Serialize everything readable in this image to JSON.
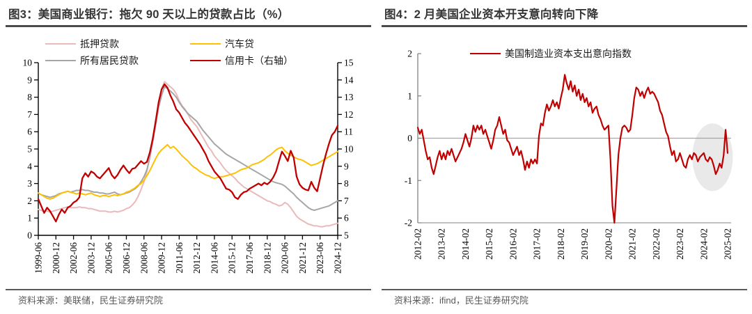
{
  "figures": [
    {
      "title": "图3：美国商业银行：拖欠 90 天以上的贷款占比（%）",
      "source": "资料来源：美联储，民生证券研究院",
      "legend": [
        {
          "label": "抵押贷款",
          "color": "#E9B9BC"
        },
        {
          "label": "汽车贷",
          "color": "#FFC000"
        },
        {
          "label": "所有居民贷款",
          "color": "#A6A6A6"
        },
        {
          "label": "信用卡（右轴）",
          "color": "#C00000"
        }
      ]
    },
    {
      "title": "图4：2 月美国企业资本开支意向转向下降",
      "source": "资料来源：ifind，民生证券研究院",
      "legend": [
        {
          "label": "美国制造业资本支出意向指数",
          "color": "#C00000"
        }
      ]
    }
  ],
  "chart_data": [
    {
      "type": "line",
      "title": "美国商业银行：拖欠90天以上的贷款占比（%）",
      "x_start": 1999.417,
      "x_step": 0.25,
      "x_tick_every": 6,
      "x_tick_labels": [
        "1999-06",
        "2000-12",
        "2002-06",
        "2003-12",
        "2005-06",
        "2006-12",
        "2008-06",
        "2009-12",
        "2011-06",
        "2012-12",
        "2014-06",
        "2015-12",
        "2017-06",
        "2018-12",
        "2020-06",
        "2021-12",
        "2023-06",
        "2024-12"
      ],
      "left_axis": {
        "min": 0,
        "max": 10,
        "ticks": [
          0,
          1,
          2,
          3,
          4,
          5,
          6,
          7,
          8,
          9,
          10
        ]
      },
      "right_axis": {
        "min": 5,
        "max": 15,
        "ticks": [
          5,
          6,
          7,
          8,
          9,
          10,
          11,
          12,
          13,
          14,
          15
        ]
      },
      "axis_color": "#000000",
      "series": [
        {
          "key": "mortgage",
          "name": "抵押贷款",
          "axis": "left",
          "color": "#E9B9BC",
          "values": [
            1.5,
            1.45,
            1.4,
            1.4,
            1.35,
            1.4,
            1.45,
            1.5,
            1.55,
            1.6,
            1.65,
            1.6,
            1.6,
            1.6,
            1.65,
            1.6,
            1.6,
            1.55,
            1.55,
            1.5,
            1.45,
            1.4,
            1.4,
            1.4,
            1.35,
            1.35,
            1.4,
            1.35,
            1.4,
            1.45,
            1.55,
            1.6,
            1.75,
            1.95,
            2.25,
            2.65,
            3.1,
            3.7,
            4.6,
            5.6,
            6.7,
            7.7,
            8.5,
            8.9,
            8.75,
            8.6,
            8.45,
            8.2,
            7.8,
            7.5,
            7.3,
            7.0,
            6.7,
            6.5,
            6.3,
            6.0,
            5.7,
            5.4,
            5.1,
            4.9,
            4.6,
            4.4,
            4.2,
            3.95,
            3.75,
            3.6,
            3.45,
            3.3,
            3.1,
            2.95,
            2.8,
            2.7,
            2.6,
            2.5,
            2.4,
            2.3,
            2.2,
            2.1,
            2.0,
            1.95,
            1.85,
            1.8,
            1.7,
            1.75,
            1.9,
            1.8,
            1.6,
            1.35,
            1.1,
            0.95,
            0.85,
            0.75,
            0.65,
            0.6,
            0.55,
            0.55,
            0.5,
            0.5,
            0.55,
            0.55,
            0.6,
            0.65,
            0.7
          ]
        },
        {
          "key": "all-consumer-loans",
          "name": "所有居民贷款",
          "axis": "left",
          "color": "#A6A6A6",
          "values": [
            2.45,
            2.35,
            2.3,
            2.25,
            2.2,
            2.25,
            2.3,
            2.4,
            2.45,
            2.5,
            2.55,
            2.5,
            2.55,
            2.6,
            2.6,
            2.65,
            2.6,
            2.6,
            2.55,
            2.5,
            2.5,
            2.45,
            2.45,
            2.4,
            2.4,
            2.45,
            2.5,
            2.4,
            2.35,
            2.4,
            2.45,
            2.5,
            2.6,
            2.7,
            2.85,
            3.1,
            3.4,
            3.8,
            4.5,
            5.4,
            6.4,
            7.4,
            8.1,
            8.6,
            8.5,
            8.35,
            8.2,
            8.0,
            7.7,
            7.45,
            7.25,
            7.05,
            6.9,
            6.75,
            6.6,
            6.35,
            6.1,
            5.9,
            5.7,
            5.5,
            5.3,
            5.15,
            5.0,
            4.85,
            4.7,
            4.6,
            4.5,
            4.4,
            4.3,
            4.2,
            4.1,
            4.0,
            3.9,
            3.8,
            3.7,
            3.6,
            3.5,
            3.4,
            3.3,
            3.2,
            3.1,
            3.05,
            3.0,
            2.95,
            2.85,
            2.7,
            2.55,
            2.4,
            2.2,
            2.05,
            1.9,
            1.75,
            1.6,
            1.5,
            1.45,
            1.5,
            1.55,
            1.6,
            1.65,
            1.7,
            1.8,
            1.9,
            2.0
          ]
        },
        {
          "key": "auto-loan",
          "name": "汽车贷",
          "axis": "left",
          "color": "#FFC000",
          "values": [
            2.45,
            2.35,
            2.25,
            2.15,
            2.1,
            2.15,
            2.25,
            2.35,
            2.45,
            2.5,
            2.55,
            2.5,
            2.45,
            2.4,
            2.45,
            2.4,
            2.35,
            2.4,
            2.45,
            2.35,
            2.3,
            2.25,
            2.3,
            2.3,
            2.25,
            2.3,
            2.35,
            2.3,
            2.35,
            2.4,
            2.5,
            2.55,
            2.65,
            2.75,
            2.9,
            3.0,
            3.2,
            3.45,
            3.75,
            4.1,
            4.45,
            4.75,
            4.95,
            5.1,
            5.25,
            5.05,
            5.15,
            5.0,
            4.8,
            4.6,
            4.45,
            4.3,
            4.1,
            3.95,
            3.85,
            3.7,
            3.6,
            3.5,
            3.45,
            3.35,
            3.3,
            3.35,
            3.4,
            3.4,
            3.45,
            3.5,
            3.55,
            3.6,
            3.7,
            3.8,
            3.85,
            3.9,
            4.0,
            4.1,
            4.15,
            4.2,
            4.3,
            4.4,
            4.55,
            4.65,
            4.8,
            4.95,
            5.05,
            5.1,
            4.9,
            4.75,
            4.65,
            4.55,
            4.45,
            4.4,
            4.35,
            4.25,
            4.15,
            4.05,
            4.1,
            4.15,
            4.25,
            4.35,
            4.45,
            4.55,
            4.65,
            4.75,
            4.85
          ]
        },
        {
          "key": "credit-card",
          "name": "信用卡（右轴）",
          "axis": "right",
          "color": "#C00000",
          "values": [
            7.1,
            6.7,
            6.3,
            6.6,
            6.4,
            6.1,
            5.8,
            6.2,
            6.5,
            6.3,
            6.6,
            6.7,
            6.9,
            7.0,
            7.2,
            8.3,
            8.6,
            8.4,
            8.7,
            8.6,
            8.4,
            8.3,
            8.5,
            8.7,
            8.9,
            8.5,
            8.3,
            8.5,
            8.8,
            9.05,
            8.8,
            8.6,
            8.85,
            8.9,
            9.1,
            9.3,
            9.15,
            9.25,
            9.8,
            10.6,
            11.6,
            12.7,
            13.45,
            13.75,
            13.55,
            13.1,
            12.75,
            12.3,
            12.1,
            11.8,
            11.5,
            11.3,
            11.05,
            10.8,
            10.55,
            10.3,
            10.0,
            9.7,
            9.3,
            9.0,
            8.7,
            8.5,
            8.3,
            8.0,
            7.7,
            7.65,
            7.5,
            7.2,
            7.1,
            7.35,
            7.5,
            7.55,
            7.7,
            7.8,
            7.9,
            8.0,
            7.9,
            8.05,
            7.95,
            8.1,
            8.35,
            8.7,
            9.3,
            9.85,
            9.6,
            9.3,
            9.9,
            9.5,
            8.4,
            7.95,
            7.75,
            7.65,
            7.6,
            8.1,
            7.75,
            7.55,
            8.3,
            9.05,
            9.7,
            10.3,
            10.8,
            11.0,
            11.35
          ]
        }
      ]
    },
    {
      "type": "line",
      "title": "2月美国企业资本开支意向转向下降",
      "x_start": 2012.083,
      "x_step": 0.083333,
      "x_tick_every": 12,
      "x_tick_labels": [
        "2012-02",
        "2013-02",
        "2014-02",
        "2015-02",
        "2016-02",
        "2017-02",
        "2018-02",
        "2019-02",
        "2020-02",
        "2021-02",
        "2022-02",
        "2023-02",
        "2024-02",
        "2025-02"
      ],
      "y_axis": {
        "min": -2,
        "max": 2,
        "ticks": [
          2,
          1,
          0,
          -1,
          -2
        ]
      },
      "axis_color": "#808080",
      "zero_line_color": "#A6A6A6",
      "highlight_ellipse": {
        "cx_x": 2024.45,
        "cy_y": -0.45,
        "rx_x": 0.85,
        "ry_y": 0.8,
        "color": "#E9E9E9"
      },
      "series": [
        {
          "key": "capex-index",
          "name": "美国制造业资本支出意向指数",
          "color": "#C00000",
          "values": [
            0.25,
            0.1,
            0.2,
            -0.05,
            -0.3,
            -0.5,
            -0.45,
            -0.7,
            -0.85,
            -0.65,
            -0.45,
            -0.3,
            -0.5,
            -0.35,
            -0.5,
            -0.3,
            -0.4,
            -0.25,
            -0.4,
            -0.55,
            -0.45,
            -0.35,
            -0.25,
            -0.1,
            0.1,
            -0.05,
            -0.2,
            0.0,
            0.3,
            0.15,
            0.3,
            0.2,
            0.3,
            0.1,
            0.2,
            0.05,
            -0.1,
            -0.25,
            -0.05,
            0.2,
            0.3,
            0.5,
            0.3,
            0.1,
            0.2,
            -0.05,
            -0.1,
            -0.25,
            -0.4,
            -0.3,
            -0.2,
            -0.4,
            -0.3,
            -0.5,
            -0.75,
            -0.55,
            -0.7,
            -0.5,
            -0.6,
            -0.5,
            -0.6,
            0.05,
            0.35,
            0.3,
            0.6,
            0.8,
            0.65,
            0.75,
            0.9,
            0.75,
            0.85,
            0.7,
            0.95,
            1.15,
            1.5,
            1.3,
            1.15,
            1.35,
            1.1,
            1.25,
            1.0,
            1.15,
            0.9,
            1.05,
            0.85,
            0.95,
            0.75,
            0.85,
            0.6,
            0.7,
            0.75,
            0.55,
            0.45,
            0.3,
            0.2,
            0.25,
            0.3,
            -0.5,
            -1.6,
            -2.0,
            -1.2,
            -0.4,
            0.0,
            0.25,
            0.3,
            0.25,
            0.15,
            0.2,
            0.55,
            0.95,
            1.2,
            1.15,
            1.0,
            1.1,
            0.95,
            1.1,
            1.2,
            1.05,
            1.1,
            1.05,
            0.95,
            0.85,
            0.65,
            0.55,
            0.35,
            0.15,
            0.05,
            -0.2,
            -0.4,
            -0.3,
            -0.55,
            -0.5,
            -0.35,
            -0.5,
            -0.65,
            -0.7,
            -0.5,
            -0.4,
            -0.5,
            -0.35,
            -0.4,
            -0.55,
            -0.45,
            -0.4,
            -0.35,
            -0.5,
            -0.55,
            -0.45,
            -0.5,
            -0.65,
            -0.85,
            -0.75,
            -0.6,
            -0.7,
            -0.4,
            0.2,
            -0.35
          ]
        }
      ]
    }
  ]
}
